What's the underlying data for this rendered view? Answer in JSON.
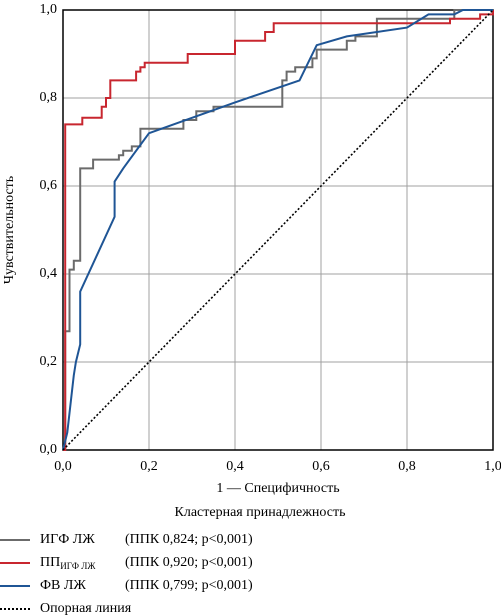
{
  "chart_data": {
    "type": "line",
    "xlabel": "1 — Специфичность",
    "ylabel": "Чувствительность",
    "legend_title": "Кластерная принадлежность",
    "legend": "bottom",
    "grid": true,
    "xlim": [
      0,
      1
    ],
    "ylim": [
      0,
      1
    ],
    "xticks": [
      {
        "value": 0,
        "label": "0,0"
      },
      {
        "value": 0.2,
        "label": "0,2"
      },
      {
        "value": 0.4,
        "label": "0,4"
      },
      {
        "value": 0.6,
        "label": "0,6"
      },
      {
        "value": 0.8,
        "label": "0,8"
      },
      {
        "value": 1,
        "label": "1,0"
      }
    ],
    "yticks": [
      {
        "value": 0,
        "label": "0,0"
      },
      {
        "value": 0.2,
        "label": "0,2"
      },
      {
        "value": 0.4,
        "label": "0,4"
      },
      {
        "value": 0.6,
        "label": "0,6"
      },
      {
        "value": 0.8,
        "label": "0,8"
      },
      {
        "value": 1,
        "label": "1,0"
      }
    ],
    "series": [
      {
        "name": "ИГФ ЛЖ",
        "auc_label": "(ППК 0,824; p<0,001)",
        "color": "#6b6b6b",
        "dash": "solid",
        "x": [
          0,
          0.005,
          0.005,
          0.015,
          0.015,
          0.025,
          0.025,
          0.04,
          0.04,
          0.07,
          0.07,
          0.13,
          0.13,
          0.14,
          0.14,
          0.16,
          0.16,
          0.18,
          0.18,
          0.28,
          0.28,
          0.31,
          0.31,
          0.35,
          0.35,
          0.51,
          0.51,
          0.52,
          0.52,
          0.54,
          0.54,
          0.58,
          0.58,
          0.59,
          0.59,
          0.66,
          0.66,
          0.68,
          0.68,
          0.73,
          0.73,
          0.91,
          0.91,
          1
        ],
        "values": [
          0,
          0,
          0.27,
          0.27,
          0.41,
          0.41,
          0.43,
          0.43,
          0.64,
          0.64,
          0.66,
          0.66,
          0.67,
          0.67,
          0.68,
          0.68,
          0.69,
          0.69,
          0.73,
          0.73,
          0.75,
          0.75,
          0.77,
          0.77,
          0.78,
          0.78,
          0.84,
          0.84,
          0.86,
          0.86,
          0.87,
          0.87,
          0.89,
          0.89,
          0.91,
          0.91,
          0.93,
          0.93,
          0.94,
          0.94,
          0.98,
          0.98,
          1,
          1
        ]
      },
      {
        "name": "ПП",
        "name_subscript": "ИГФ ЛЖ",
        "auc_label": "(ППК 0,920; p<0,001)",
        "color": "#c8262f",
        "dash": "solid",
        "x": [
          0,
          0.005,
          0.005,
          0.045,
          0.045,
          0.09,
          0.09,
          0.1,
          0.1,
          0.11,
          0.11,
          0.17,
          0.17,
          0.18,
          0.18,
          0.19,
          0.19,
          0.29,
          0.29,
          0.4,
          0.4,
          0.47,
          0.47,
          0.49,
          0.49,
          0.9,
          0.9,
          0.97,
          0.97,
          1,
          1
        ],
        "values": [
          0,
          0,
          0.74,
          0.74,
          0.755,
          0.755,
          0.78,
          0.78,
          0.8,
          0.8,
          0.84,
          0.84,
          0.86,
          0.86,
          0.87,
          0.87,
          0.88,
          0.88,
          0.9,
          0.9,
          0.93,
          0.93,
          0.95,
          0.95,
          0.97,
          0.97,
          0.98,
          0.98,
          0.99,
          0.99,
          1
        ]
      },
      {
        "name": "ФВ ЛЖ",
        "auc_label": "(ППК 0,799; p<0,001)",
        "color": "#1f5595",
        "dash": "solid",
        "x": [
          0,
          0.01,
          0.025,
          0.03,
          0.04,
          0.04,
          0.12,
          0.12,
          0.14,
          0.2,
          0.4,
          0.55,
          0.59,
          0.66,
          0.8,
          0.85,
          0.91,
          0.93,
          1
        ],
        "values": [
          0,
          0.04,
          0.17,
          0.2,
          0.24,
          0.36,
          0.53,
          0.61,
          0.64,
          0.72,
          0.79,
          0.84,
          0.92,
          0.94,
          0.96,
          0.99,
          0.99,
          1,
          1
        ]
      },
      {
        "name": "Опорная линия",
        "color": "#000000",
        "dash": "dotted",
        "x": [
          0,
          1
        ],
        "values": [
          0,
          1
        ]
      }
    ]
  }
}
